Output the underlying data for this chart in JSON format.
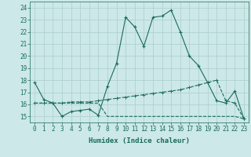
{
  "xlabel": "Humidex (Indice chaleur)",
  "x": [
    0,
    1,
    2,
    3,
    4,
    5,
    6,
    7,
    8,
    9,
    10,
    11,
    12,
    13,
    14,
    15,
    16,
    17,
    18,
    19,
    20,
    21,
    22,
    23
  ],
  "line1": [
    17.8,
    16.4,
    16.1,
    15.0,
    15.4,
    15.5,
    15.6,
    15.1,
    17.5,
    19.4,
    23.2,
    22.4,
    20.8,
    23.2,
    23.3,
    23.8,
    22.0,
    20.0,
    19.2,
    17.8,
    16.3,
    16.1,
    17.1,
    14.8
  ],
  "line2": [
    16.1,
    16.1,
    16.1,
    16.1,
    16.2,
    16.2,
    16.2,
    16.3,
    16.4,
    16.5,
    16.6,
    16.7,
    16.8,
    16.9,
    17.0,
    17.1,
    17.2,
    17.4,
    17.6,
    17.8,
    18.0,
    16.3,
    16.1,
    14.8
  ],
  "line3": [
    16.1,
    16.1,
    16.1,
    16.1,
    16.1,
    16.1,
    16.1,
    16.1,
    15.0,
    15.0,
    15.0,
    15.0,
    15.0,
    15.0,
    15.0,
    15.0,
    15.0,
    15.0,
    15.0,
    15.0,
    15.0,
    15.0,
    15.0,
    14.8
  ],
  "line_color": "#1a6b5a",
  "bg_color": "#cce8e8",
  "plot_bg": "#cce8e8",
  "ylim": [
    14.5,
    24.5
  ],
  "yticks": [
    15,
    16,
    17,
    18,
    19,
    20,
    21,
    22,
    23,
    24
  ],
  "xticks": [
    0,
    1,
    2,
    3,
    4,
    5,
    6,
    7,
    8,
    9,
    10,
    11,
    12,
    13,
    14,
    15,
    16,
    17,
    18,
    19,
    20,
    21,
    22,
    23
  ],
  "grid_color": "#aacece",
  "tick_fontsize": 5.5,
  "xlabel_fontsize": 6.5
}
